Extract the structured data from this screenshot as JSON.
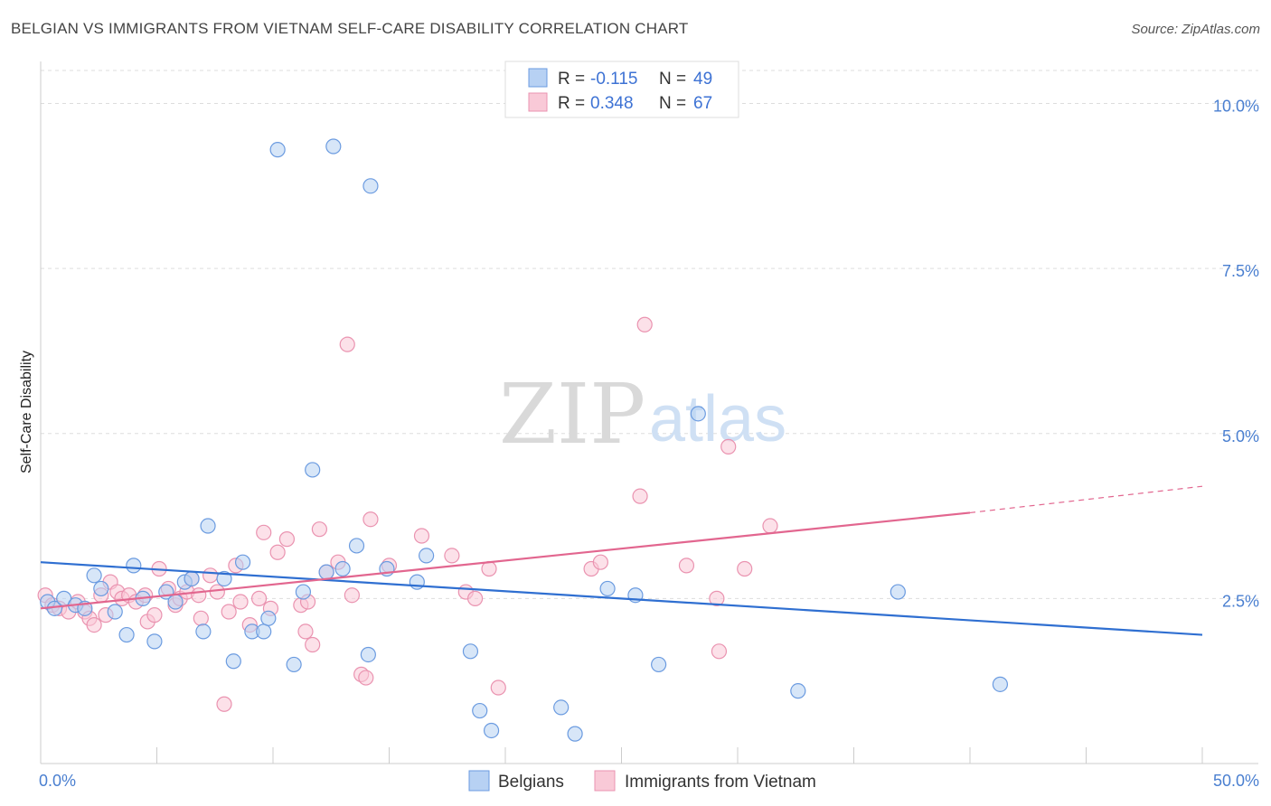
{
  "title": "BELGIAN VS IMMIGRANTS FROM VIETNAM SELF-CARE DISABILITY CORRELATION CHART",
  "source": "Source: ZipAtlas.com",
  "watermark": {
    "zip": "ZIP",
    "atlas": "atlas"
  },
  "legend_box": {
    "rows": [
      {
        "r_label": "R =",
        "r_value": "-0.115",
        "n_label": "N =",
        "n_value": "49"
      },
      {
        "r_label": "R =",
        "r_value": "0.348",
        "n_label": "N =",
        "n_value": "67"
      }
    ]
  },
  "colors": {
    "belgians_fill": "#b7d1f3",
    "belgians_stroke": "#6b9be0",
    "belgians_line": "#2f6fd1",
    "vietnam_fill": "#f9c9d7",
    "vietnam_stroke": "#ea93b0",
    "vietnam_line": "#e2668f",
    "tick_text": "#4a7fd0"
  },
  "chart_data": {
    "type": "scatter",
    "ylabel": "Self-Care Disability",
    "xlim": [
      0,
      50
    ],
    "ylim": [
      0,
      10.5
    ],
    "x_tick_labels": [
      "0.0%",
      "50.0%"
    ],
    "y_ticks": [
      {
        "value": 2.5,
        "label": "2.5%"
      },
      {
        "value": 5.0,
        "label": "5.0%"
      },
      {
        "value": 7.5,
        "label": "7.5%"
      },
      {
        "value": 10.0,
        "label": "10.0%"
      }
    ],
    "series": [
      {
        "name": "Belgians",
        "points": [
          [
            0.3,
            2.45
          ],
          [
            0.6,
            2.35
          ],
          [
            1.0,
            2.5
          ],
          [
            1.5,
            2.4
          ],
          [
            1.9,
            2.35
          ],
          [
            2.3,
            2.85
          ],
          [
            2.6,
            2.65
          ],
          [
            3.2,
            2.3
          ],
          [
            3.7,
            1.95
          ],
          [
            4.0,
            3.0
          ],
          [
            4.4,
            2.5
          ],
          [
            4.9,
            1.85
          ],
          [
            5.4,
            2.6
          ],
          [
            5.8,
            2.45
          ],
          [
            6.2,
            2.75
          ],
          [
            6.5,
            2.8
          ],
          [
            7.0,
            2.0
          ],
          [
            7.2,
            3.6
          ],
          [
            7.9,
            2.8
          ],
          [
            8.3,
            1.55
          ],
          [
            8.7,
            3.05
          ],
          [
            9.1,
            2.0
          ],
          [
            9.6,
            2.0
          ],
          [
            9.8,
            2.2
          ],
          [
            10.2,
            9.3
          ],
          [
            10.9,
            1.5
          ],
          [
            11.3,
            2.6
          ],
          [
            11.7,
            4.45
          ],
          [
            12.3,
            2.9
          ],
          [
            12.6,
            9.35
          ],
          [
            13.0,
            2.95
          ],
          [
            13.6,
            3.3
          ],
          [
            14.1,
            1.65
          ],
          [
            14.2,
            8.75
          ],
          [
            14.9,
            2.95
          ],
          [
            16.2,
            2.75
          ],
          [
            16.6,
            3.15
          ],
          [
            18.5,
            1.7
          ],
          [
            18.9,
            0.8
          ],
          [
            19.4,
            0.5
          ],
          [
            22.4,
            0.85
          ],
          [
            23.0,
            0.45
          ],
          [
            24.4,
            2.65
          ],
          [
            25.6,
            2.55
          ],
          [
            26.6,
            1.5
          ],
          [
            28.3,
            5.3
          ],
          [
            32.6,
            1.1
          ],
          [
            36.9,
            2.6
          ],
          [
            41.3,
            1.2
          ]
        ],
        "trend": {
          "x": [
            0,
            50
          ],
          "y": [
            3.05,
            1.95
          ]
        }
      },
      {
        "name": "Immigrants from Vietnam",
        "points": [
          [
            0.2,
            2.55
          ],
          [
            0.5,
            2.4
          ],
          [
            0.8,
            2.35
          ],
          [
            1.2,
            2.3
          ],
          [
            1.6,
            2.45
          ],
          [
            1.9,
            2.3
          ],
          [
            2.1,
            2.2
          ],
          [
            2.3,
            2.1
          ],
          [
            2.6,
            2.55
          ],
          [
            2.8,
            2.25
          ],
          [
            3.0,
            2.75
          ],
          [
            3.3,
            2.6
          ],
          [
            3.5,
            2.5
          ],
          [
            3.8,
            2.55
          ],
          [
            4.1,
            2.45
          ],
          [
            4.5,
            2.55
          ],
          [
            4.6,
            2.15
          ],
          [
            4.9,
            2.25
          ],
          [
            5.1,
            2.95
          ],
          [
            5.5,
            2.65
          ],
          [
            5.8,
            2.4
          ],
          [
            6.0,
            2.5
          ],
          [
            6.3,
            2.6
          ],
          [
            6.5,
            2.8
          ],
          [
            6.9,
            2.2
          ],
          [
            7.3,
            2.85
          ],
          [
            7.6,
            2.6
          ],
          [
            7.9,
            0.9
          ],
          [
            8.1,
            2.3
          ],
          [
            8.4,
            3.0
          ],
          [
            8.6,
            2.45
          ],
          [
            9.0,
            2.1
          ],
          [
            9.4,
            2.5
          ],
          [
            9.6,
            3.5
          ],
          [
            9.9,
            2.35
          ],
          [
            10.2,
            3.2
          ],
          [
            10.6,
            3.4
          ],
          [
            11.2,
            2.4
          ],
          [
            11.4,
            2.0
          ],
          [
            11.7,
            1.8
          ],
          [
            12.0,
            3.55
          ],
          [
            12.3,
            2.9
          ],
          [
            12.8,
            3.05
          ],
          [
            13.2,
            6.35
          ],
          [
            13.4,
            2.55
          ],
          [
            13.8,
            1.35
          ],
          [
            14.0,
            1.3
          ],
          [
            14.2,
            3.7
          ],
          [
            15.0,
            3.0
          ],
          [
            16.4,
            3.45
          ],
          [
            17.7,
            3.15
          ],
          [
            18.3,
            2.6
          ],
          [
            18.7,
            2.5
          ],
          [
            19.3,
            2.95
          ],
          [
            19.7,
            1.15
          ],
          [
            23.7,
            2.95
          ],
          [
            24.1,
            3.05
          ],
          [
            25.8,
            4.05
          ],
          [
            26.0,
            6.65
          ],
          [
            27.8,
            3.0
          ],
          [
            29.1,
            2.5
          ],
          [
            29.2,
            1.7
          ],
          [
            29.6,
            4.8
          ],
          [
            30.3,
            2.95
          ],
          [
            31.4,
            3.6
          ],
          [
            11.5,
            2.45
          ],
          [
            6.8,
            2.55
          ]
        ],
        "trend": {
          "x": [
            0,
            40
          ],
          "y": [
            2.35,
            3.8
          ]
        },
        "trend_dashed": {
          "x": [
            40,
            50
          ],
          "y": [
            3.8,
            4.2
          ]
        }
      }
    ]
  }
}
